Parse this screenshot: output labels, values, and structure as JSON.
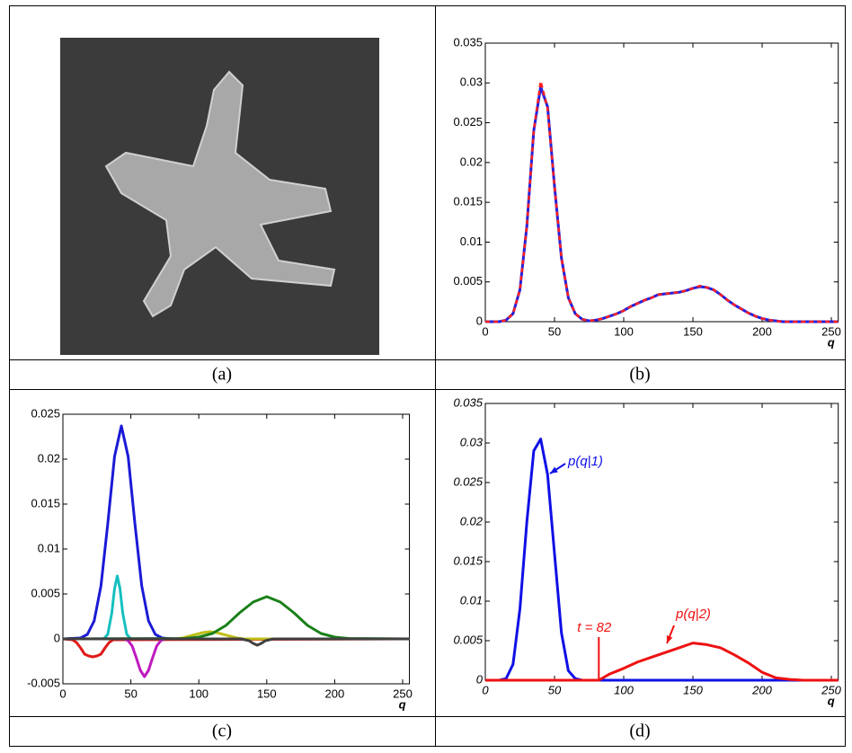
{
  "figure": {
    "captions": [
      "(a)",
      "(b)",
      "(c)",
      "(d)"
    ]
  },
  "chart_data": [
    {
      "type": "line",
      "x_label": "q",
      "x": [
        0,
        5,
        10,
        15,
        20,
        25,
        30,
        35,
        40,
        45,
        50,
        55,
        60,
        65,
        70,
        75,
        80,
        85,
        90,
        95,
        100,
        105,
        110,
        115,
        120,
        125,
        130,
        135,
        140,
        145,
        150,
        155,
        160,
        165,
        170,
        175,
        180,
        185,
        190,
        195,
        200,
        205,
        210,
        215,
        220,
        225,
        230,
        235,
        240,
        245,
        250,
        255
      ],
      "xlim": [
        0,
        255
      ],
      "xticks": [
        0,
        50,
        100,
        150,
        200,
        250
      ],
      "ylim": [
        0,
        0.035
      ],
      "yticks": [
        0,
        0.005,
        0.01,
        0.015,
        0.02,
        0.025,
        0.03,
        0.035
      ],
      "series": [
        {
          "color": "#2020e0",
          "values": [
            0,
            0,
            0,
            0.0002,
            0.001,
            0.004,
            0.012,
            0.024,
            0.0295,
            0.027,
            0.017,
            0.008,
            0.003,
            0.001,
            0.0003,
            0.0001,
            0.0002,
            0.0004,
            0.0007,
            0.001,
            0.0014,
            0.0019,
            0.0023,
            0.0027,
            0.003,
            0.0034,
            0.0035,
            0.0036,
            0.0037,
            0.0039,
            0.0042,
            0.0044,
            0.0043,
            0.004,
            0.0034,
            0.0027,
            0.0021,
            0.0016,
            0.0011,
            0.0007,
            0.0004,
            0.0002,
            0.0001,
            0,
            0,
            0,
            0,
            0,
            0,
            0,
            0,
            0
          ]
        },
        {
          "color": "#ff2020",
          "dashed": true,
          "values": [
            0,
            0,
            0,
            0.0002,
            0.001,
            0.004,
            0.012,
            0.024,
            0.0302,
            0.0268,
            0.017,
            0.008,
            0.003,
            0.001,
            0.0003,
            0.0001,
            0.0002,
            0.0004,
            0.0007,
            0.001,
            0.0014,
            0.0019,
            0.0023,
            0.0027,
            0.003,
            0.0034,
            0.0035,
            0.0036,
            0.0037,
            0.0039,
            0.0042,
            0.0045,
            0.0043,
            0.004,
            0.0034,
            0.0027,
            0.0021,
            0.0016,
            0.0011,
            0.0007,
            0.0004,
            0.0002,
            0.0001,
            0,
            0,
            0,
            0,
            0,
            0,
            0,
            0,
            0
          ]
        }
      ]
    },
    {
      "type": "line",
      "x_label": "q",
      "xlim": [
        0,
        255
      ],
      "xticks": [
        0,
        50,
        100,
        150,
        200,
        250
      ],
      "ylim": [
        -0.005,
        0.025
      ],
      "yticks": [
        -0.005,
        0,
        0.005,
        0.01,
        0.015,
        0.02,
        0.025
      ],
      "series": [
        {
          "color": "#1a1ad6",
          "x": [
            0,
            13,
            18,
            23,
            28,
            33,
            38,
            43,
            48,
            53,
            58,
            63,
            68,
            73,
            80,
            255
          ],
          "values": [
            0,
            0.0001,
            0.0005,
            0.002,
            0.0059,
            0.0128,
            0.0203,
            0.0237,
            0.0203,
            0.0128,
            0.0059,
            0.002,
            0.0005,
            0.0001,
            0,
            0
          ]
        },
        {
          "color": "#17bfbf",
          "x": [
            0,
            30,
            33,
            36,
            38,
            40,
            42,
            44,
            47,
            50,
            255
          ],
          "values": [
            0,
            0,
            0.0005,
            0.0029,
            0.0056,
            0.007,
            0.0056,
            0.0029,
            0.0005,
            0,
            0
          ]
        },
        {
          "color": "#e01a1a",
          "x": [
            0,
            7,
            10,
            13,
            16,
            19,
            22,
            25,
            28,
            31,
            34,
            37,
            255
          ],
          "values": [
            0,
            -0.0001,
            -0.0004,
            -0.001,
            -0.0017,
            -0.0019,
            -0.002,
            -0.0019,
            -0.0017,
            -0.001,
            -0.0004,
            -0.0001,
            0
          ]
        },
        {
          "color": "#bf1abf",
          "x": [
            0,
            45,
            48,
            51,
            54,
            57,
            60,
            63,
            66,
            69,
            72,
            75,
            255
          ],
          "values": [
            0,
            0,
            -0.0002,
            -0.0008,
            -0.0021,
            -0.0035,
            -0.0042,
            -0.0035,
            -0.0021,
            -0.0008,
            -0.0002,
            0,
            0
          ]
        },
        {
          "color": "#bfbf1a",
          "x": [
            0,
            83,
            88,
            93,
            98,
            103,
            108,
            113,
            118,
            123,
            128,
            133,
            255
          ],
          "values": [
            0,
            0,
            0.0001,
            0.0003,
            0.0005,
            0.0007,
            0.0008,
            0.0007,
            0.0005,
            0.0003,
            0.0001,
            0,
            0
          ]
        },
        {
          "color": "#1a801a",
          "x": [
            0,
            90,
            100,
            110,
            120,
            130,
            140,
            150,
            160,
            170,
            180,
            190,
            200,
            210,
            255
          ],
          "values": [
            0,
            5e-05,
            0.0002,
            0.0006,
            0.0015,
            0.0029,
            0.0041,
            0.0047,
            0.0041,
            0.0029,
            0.0015,
            0.0006,
            0.0002,
            5e-05,
            0
          ]
        },
        {
          "color": "#404040",
          "x": [
            0,
            131,
            134,
            137,
            140,
            143,
            146,
            149,
            152,
            155,
            255
          ],
          "values": [
            0,
            0,
            -0.0001,
            -0.0002,
            -0.0005,
            -0.0007,
            -0.0005,
            -0.0002,
            -0.0001,
            0,
            0
          ]
        }
      ]
    },
    {
      "type": "line",
      "x_label": "q",
      "xlim": [
        0,
        255
      ],
      "xticks": [
        0,
        50,
        100,
        150,
        200,
        250
      ],
      "ylim": [
        0,
        0.035
      ],
      "yticks": [
        0,
        0.005,
        0.01,
        0.015,
        0.02,
        0.025,
        0.03,
        0.035
      ],
      "threshold": 82,
      "threshold_label": "t = 82",
      "annotations": [
        "p(q|1)",
        "p(q|2)"
      ],
      "series": [
        {
          "color": "#1010e6",
          "x": [
            0,
            10,
            15,
            20,
            25,
            30,
            35,
            40,
            45,
            50,
            55,
            60,
            65,
            70,
            255
          ],
          "values": [
            0,
            0,
            0.0002,
            0.002,
            0.009,
            0.02,
            0.029,
            0.0305,
            0.026,
            0.016,
            0.006,
            0.0012,
            0.0002,
            0,
            0
          ]
        },
        {
          "color": "#ee1111",
          "x": [
            0,
            82,
            90,
            100,
            110,
            120,
            130,
            140,
            150,
            160,
            170,
            180,
            190,
            200,
            210,
            220,
            230,
            255
          ],
          "values": [
            0,
            0,
            0.0008,
            0.0015,
            0.0023,
            0.0029,
            0.0035,
            0.0041,
            0.0047,
            0.0045,
            0.0041,
            0.0032,
            0.0022,
            0.001,
            0.0003,
            0.0001,
            0,
            0
          ]
        }
      ]
    }
  ]
}
